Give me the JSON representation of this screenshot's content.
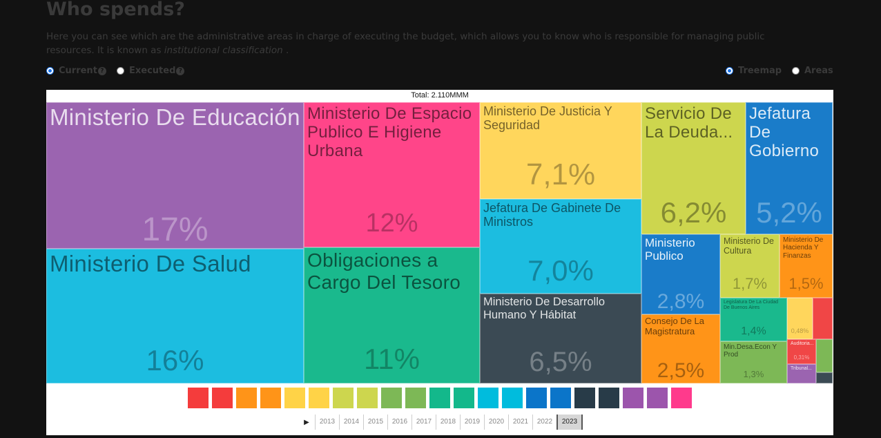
{
  "header": {
    "title": "Who spends?",
    "desc_text": "Here you can see which are the administrative areas in charge of executing the budget, which allows you to know who is responsible for managing public resources. It is known as ",
    "desc_em": "institutional classification",
    "desc_end": " ."
  },
  "controls": {
    "current_label": "Current",
    "executed_label": "Executed",
    "help_glyph": "?",
    "treemap_label": "Treemap",
    "areas_label": "Areas",
    "selected_measure": "Current",
    "selected_view": "Treemap"
  },
  "chart_data": {
    "type": "treemap",
    "title": "Total: 2.110MMM",
    "total": "2.110MMM",
    "items": [
      {
        "name": "Ministerio De Educación",
        "share": "17%",
        "value": 17.0,
        "color": "#9b64b0"
      },
      {
        "name": "Ministerio De Salud",
        "share": "16%",
        "value": 16.0,
        "color": "#1cbde0"
      },
      {
        "name": "Ministerio De Espacio Publico E Higiene Urbana",
        "share": "12%",
        "value": 12.0,
        "color": "#ff4589"
      },
      {
        "name": "Obligaciones a Cargo Del Tesoro",
        "share": "11%",
        "value": 11.0,
        "color": "#1ab98d"
      },
      {
        "name": "Ministerio De Justicia Y Seguridad",
        "share": "7,1%",
        "value": 7.1,
        "color": "#ffd65c"
      },
      {
        "name": "Jefatura De Gabinete De Ministros",
        "share": "7,0%",
        "value": 7.0,
        "color": "#1cbde0"
      },
      {
        "name": "Ministerio De Desarrollo Humano Y Hábitat",
        "share": "6,5%",
        "value": 6.5,
        "color": "#3b4a54"
      },
      {
        "name": "Servicio De La Deuda...",
        "share": "6,2%",
        "value": 6.2,
        "color": "#cdd64e"
      },
      {
        "name": "Jefatura De Gobierno",
        "share": "5,2%",
        "value": 5.2,
        "color": "#1a7cc9"
      },
      {
        "name": "Ministerio Publico",
        "share": "2,8%",
        "value": 2.8,
        "color": "#1a7cc9"
      },
      {
        "name": "Consejo De La Magistratura",
        "share": "2,5%",
        "value": 2.5,
        "color": "#ff9418"
      },
      {
        "name": "Ministerio De Cultura",
        "share": "1,7%",
        "value": 1.7,
        "color": "#cdd64e"
      },
      {
        "name": "Ministerio De Hacienda Y Finanzas",
        "share": "1,5%",
        "value": 1.5,
        "color": "#ff9418"
      },
      {
        "name": "Legislatura De La Ciudad De Buenos Aires",
        "share": "1,4%",
        "value": 1.4,
        "color": "#1ab98d"
      },
      {
        "name": "Min.Desa.Econ Y Prod",
        "share": "1,3%",
        "value": 1.3,
        "color": "#7db856"
      },
      {
        "name": "",
        "share": "0,48%",
        "value": 0.48,
        "color": "#ffd65c"
      },
      {
        "name": "Auditoria...",
        "share": "0,31%",
        "value": 0.31,
        "color": "#f04646"
      },
      {
        "name": "Tribunal...",
        "share": "",
        "value": 0.3,
        "color": "#9b64b0"
      },
      {
        "name": "",
        "share": "",
        "value": 0.3,
        "color": "#f04646"
      },
      {
        "name": "",
        "share": "",
        "value": 0.25,
        "color": "#7db856"
      },
      {
        "name": "",
        "share": "",
        "value": 0.08,
        "color": "#3b4a54"
      }
    ]
  },
  "legend_colors": [
    "#f43c3c",
    "#f43c3c",
    "#ff9418",
    "#ff9418",
    "#ffd347",
    "#ffd347",
    "#cdd64e",
    "#cdd64e",
    "#7db856",
    "#7db856",
    "#13b88b",
    "#13b88b",
    "#00bcdd",
    "#00bcdd",
    "#0b75c9",
    "#0b75c9",
    "#283b48",
    "#283b48",
    "#9c55ac",
    "#9c55ac",
    "#ff3a8c"
  ],
  "timeline": {
    "play_glyph": "▶",
    "years": [
      "2013",
      "2014",
      "2015",
      "2016",
      "2017",
      "2018",
      "2019",
      "2020",
      "2021",
      "2022",
      "2023"
    ],
    "selected": "2023"
  }
}
